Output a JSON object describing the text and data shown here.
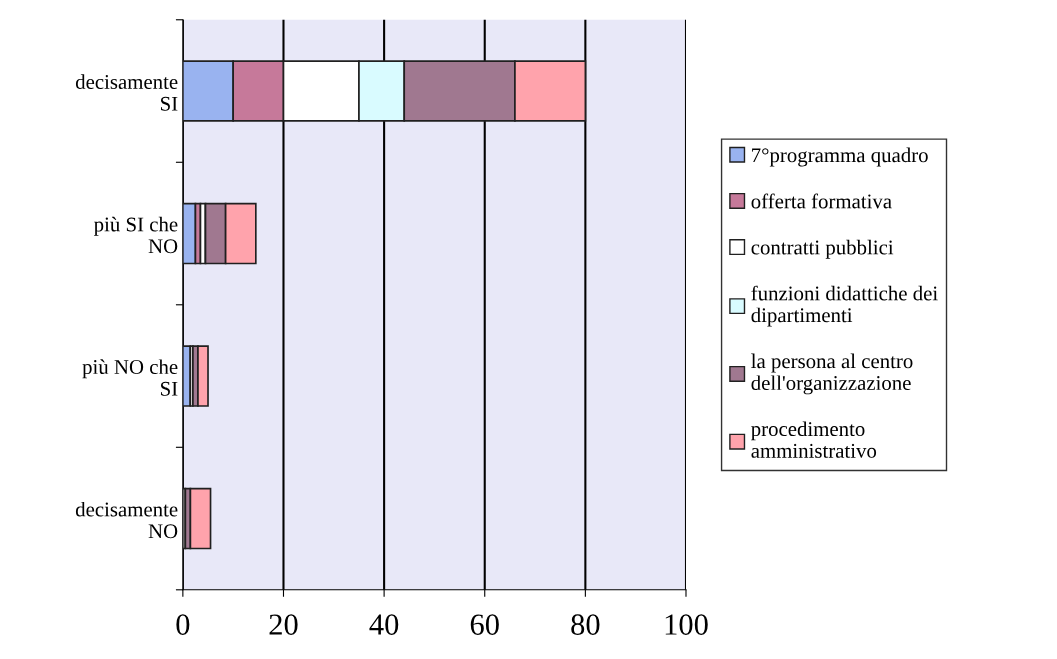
{
  "chart_data": {
    "type": "bar",
    "orientation": "horizontal",
    "stacked": true,
    "categories": [
      "decisamente\nSI",
      "più SI che\nNO",
      "più NO che\nSI",
      "decisamente\nNO"
    ],
    "series": [
      {
        "name": "7°programma quadro",
        "color": "#99b3f0",
        "values": [
          10,
          2.5,
          1.5,
          0
        ]
      },
      {
        "name": "offerta formativa",
        "color": "#c6799a",
        "values": [
          10,
          1,
          null,
          0
        ]
      },
      {
        "name": "contratti pubblici",
        "color": "#ffffff",
        "values": [
          15,
          1,
          0.5,
          0.5
        ]
      },
      {
        "name": "funzioni didattiche dei\ndipartimenti",
        "color": "#d9fbff",
        "values": [
          9,
          null,
          null,
          null
        ]
      },
      {
        "name": "la persona al centro\ndell'organizzazione",
        "color": "#a07890",
        "values": [
          22,
          4,
          1,
          1
        ]
      },
      {
        "name": "procedimento\namministrativo",
        "color": "#ffa3ac",
        "values": [
          14,
          6,
          2,
          4
        ]
      }
    ],
    "xlim": [
      0,
      100
    ],
    "xticks": [
      0,
      20,
      40,
      60,
      80,
      100
    ],
    "grid": "x",
    "legend": "right"
  }
}
